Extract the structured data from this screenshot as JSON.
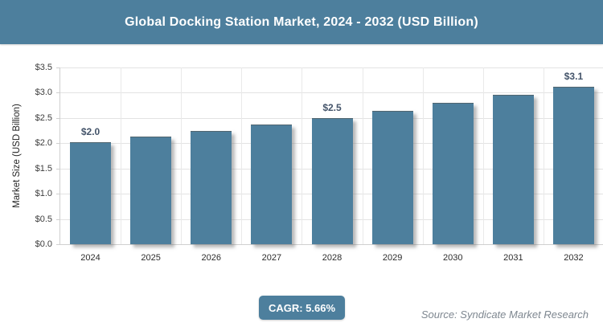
{
  "header": {
    "title": "Global Docking Station Market, 2024 - 2032 (USD Billion)"
  },
  "chart_data": {
    "type": "bar",
    "title": "Global Docking Station Market, 2024 - 2032 (USD Billion)",
    "categories": [
      "2024",
      "2025",
      "2026",
      "2027",
      "2028",
      "2029",
      "2030",
      "2031",
      "2032"
    ],
    "values": [
      2.0,
      2.11,
      2.23,
      2.36,
      2.49,
      2.63,
      2.78,
      2.94,
      3.1
    ],
    "bar_labels": [
      "$2.0",
      null,
      null,
      null,
      "$2.5",
      null,
      null,
      null,
      "$3.1"
    ],
    "xlabel": "",
    "ylabel": "Market Size (USD Billion)",
    "ylim": [
      0,
      3.5
    ],
    "ytick_labels": [
      "$0.0",
      "$0.5",
      "$1.0",
      "$1.5",
      "$2.0",
      "$2.5",
      "$3.0",
      "$3.5"
    ],
    "grid": true,
    "legend": "none"
  },
  "footer": {
    "cagr_label": "CAGR: 5.66%",
    "source": "Source: Syndicate Market Research"
  },
  "colors": {
    "accent": "#4d7f9d",
    "data_label": "#44546a",
    "gridline_h": "#e3e3e3",
    "gridline_v": "#e9e9e9",
    "axis_line": "#cfcfcf",
    "source_text": "#7e8790"
  }
}
